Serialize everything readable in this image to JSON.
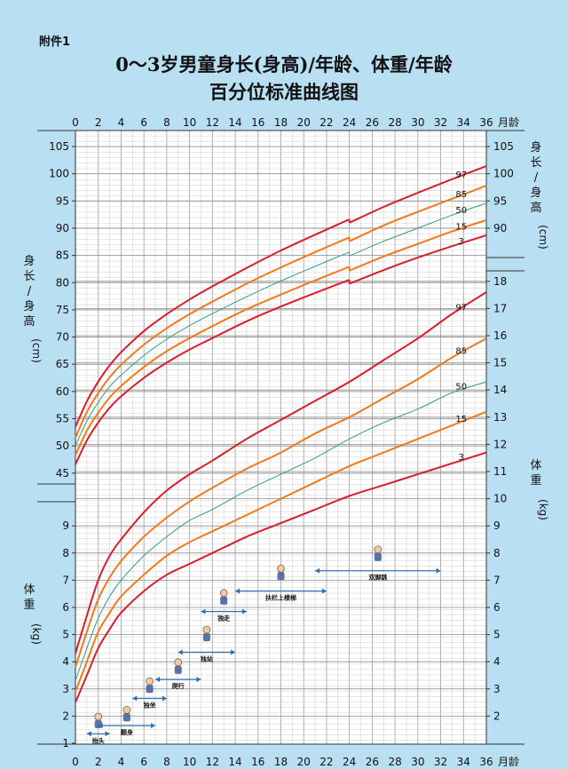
{
  "header": {
    "appendix": "附件1",
    "title_line1": "0～3岁男童身长(身高)/年龄、体重/年龄",
    "title_line2": "百分位标准曲线图"
  },
  "chart_data": {
    "type": "line",
    "xlabel": "月龄",
    "x_ticks": [
      0,
      2,
      4,
      6,
      8,
      10,
      12,
      14,
      16,
      18,
      20,
      22,
      24,
      26,
      28,
      30,
      32,
      34,
      36
    ],
    "xlim": [
      0,
      36
    ],
    "height_axis": {
      "label_chars": [
        "身",
        "长",
        "/",
        "身",
        "高"
      ],
      "unit": "(cm)",
      "left_ticks": [
        45,
        50,
        55,
        60,
        65,
        70,
        75,
        80,
        85,
        90,
        95,
        100,
        105
      ],
      "right_ticks": [
        90,
        95,
        100,
        105
      ],
      "ylim": [
        43,
        107
      ]
    },
    "weight_axis": {
      "label_chars": [
        "体",
        "重"
      ],
      "unit": "(kg)",
      "left_ticks": [
        1,
        2,
        3,
        4,
        5,
        6,
        7,
        8,
        9
      ],
      "right_ticks": [
        2,
        3,
        4,
        5,
        6,
        7,
        8,
        9,
        10,
        11,
        12,
        13,
        14,
        15,
        16,
        17,
        18
      ],
      "ylim": [
        1,
        18.5
      ]
    },
    "height_series": [
      {
        "name": "97",
        "color": "#d81e2a",
        "x": [
          0,
          1,
          2,
          3,
          4,
          6,
          8,
          10,
          12,
          15,
          18,
          21,
          23.99,
          24,
          27,
          30,
          33,
          36
        ],
        "values": [
          53.5,
          58.2,
          61.8,
          64.8,
          67.2,
          71.1,
          74.2,
          76.9,
          79.3,
          82.7,
          85.9,
          88.8,
          91.6,
          91.0,
          93.9,
          96.5,
          99.0,
          101.4
        ]
      },
      {
        "name": "85",
        "color": "#f07a1a",
        "x": [
          0,
          1,
          2,
          3,
          4,
          6,
          8,
          10,
          12,
          15,
          18,
          21,
          23.99,
          24,
          27,
          30,
          33,
          36
        ],
        "values": [
          51.5,
          56.2,
          59.7,
          62.6,
          64.9,
          68.6,
          71.6,
          74.2,
          76.5,
          79.8,
          82.8,
          85.6,
          88.3,
          87.6,
          90.5,
          93.0,
          95.4,
          97.8
        ]
      },
      {
        "name": "50",
        "color": "#2e9c85",
        "x": [
          0,
          1,
          2,
          3,
          4,
          6,
          8,
          10,
          12,
          15,
          18,
          21,
          23.99,
          24,
          27,
          30,
          33,
          36
        ],
        "values": [
          50.0,
          54.6,
          58.0,
          60.9,
          63.0,
          66.6,
          69.6,
          72.1,
          74.3,
          77.4,
          80.3,
          83.0,
          85.6,
          84.9,
          87.6,
          90.0,
          92.4,
          94.6
        ]
      },
      {
        "name": "15",
        "color": "#f07a1a",
        "x": [
          0,
          1,
          2,
          3,
          4,
          6,
          8,
          10,
          12,
          15,
          18,
          21,
          23.99,
          24,
          27,
          30,
          33,
          36
        ],
        "values": [
          48.3,
          52.8,
          56.1,
          58.9,
          61.0,
          64.5,
          67.4,
          69.8,
          72.0,
          75.1,
          77.8,
          80.4,
          82.9,
          82.2,
          84.8,
          87.1,
          89.4,
          91.5
        ]
      },
      {
        "name": "3",
        "color": "#d81e2a",
        "x": [
          0,
          1,
          2,
          3,
          4,
          6,
          8,
          10,
          12,
          15,
          18,
          21,
          23.99,
          24,
          27,
          30,
          33,
          36
        ],
        "values": [
          46.6,
          51.0,
          54.3,
          57.0,
          59.1,
          62.5,
          65.3,
          67.7,
          69.8,
          72.9,
          75.6,
          78.1,
          80.5,
          79.8,
          82.3,
          84.6,
          86.7,
          88.7
        ]
      }
    ],
    "weight_series": [
      {
        "name": "97",
        "color": "#d81e2a",
        "x": [
          0,
          1,
          2,
          3,
          4,
          6,
          8,
          10,
          12,
          15,
          18,
          21,
          24,
          27,
          30,
          33,
          36
        ],
        "values": [
          4.3,
          5.7,
          7.0,
          7.9,
          8.5,
          9.5,
          10.3,
          10.9,
          11.4,
          12.2,
          12.9,
          13.6,
          14.3,
          15.1,
          15.9,
          16.8,
          17.6
        ]
      },
      {
        "name": "85",
        "color": "#f07a1a",
        "x": [
          0,
          1,
          2,
          3,
          4,
          6,
          8,
          10,
          12,
          15,
          18,
          21,
          24,
          27,
          30,
          33,
          36
        ],
        "values": [
          3.8,
          5.1,
          6.3,
          7.1,
          7.7,
          8.6,
          9.3,
          9.9,
          10.4,
          11.1,
          11.7,
          12.4,
          13.0,
          13.7,
          14.4,
          15.2,
          15.9
        ]
      },
      {
        "name": "50",
        "color": "#2e9c85",
        "x": [
          0,
          1,
          2,
          3,
          4,
          6,
          8,
          10,
          12,
          15,
          18,
          21,
          24,
          27,
          30,
          33,
          36
        ],
        "values": [
          3.3,
          4.5,
          5.6,
          6.4,
          7.0,
          7.9,
          8.6,
          9.2,
          9.6,
          10.3,
          10.9,
          11.5,
          12.2,
          12.8,
          13.3,
          13.9,
          14.3
        ]
      },
      {
        "name": "15",
        "color": "#f07a1a",
        "x": [
          0,
          1,
          2,
          3,
          4,
          6,
          8,
          10,
          12,
          15,
          18,
          21,
          24,
          27,
          30,
          33,
          36
        ],
        "values": [
          2.9,
          4.0,
          5.1,
          5.8,
          6.4,
          7.2,
          7.9,
          8.4,
          8.8,
          9.4,
          10.0,
          10.6,
          11.2,
          11.7,
          12.2,
          12.7,
          13.2
        ]
      },
      {
        "name": "3",
        "color": "#d81e2a",
        "x": [
          0,
          1,
          2,
          3,
          4,
          6,
          8,
          10,
          12,
          15,
          18,
          21,
          24,
          27,
          30,
          33,
          36
        ],
        "values": [
          2.5,
          3.5,
          4.5,
          5.2,
          5.8,
          6.6,
          7.2,
          7.6,
          8.0,
          8.6,
          9.1,
          9.6,
          10.1,
          10.5,
          10.9,
          11.3,
          11.7
        ]
      }
    ],
    "milestones": [
      {
        "label": "抬头",
        "from": 1,
        "to": 3,
        "y": 1.35,
        "figure_y": 1.75
      },
      {
        "label": "翻身",
        "from": 2,
        "to": 7,
        "y": 1.65,
        "figure_y": 2.0
      },
      {
        "label": "独坐",
        "from": 5,
        "to": 8,
        "y": 2.65,
        "figure_y": 3.05
      },
      {
        "label": "爬行",
        "from": 7,
        "to": 11,
        "y": 3.35,
        "figure_y": 3.75
      },
      {
        "label": "独站",
        "from": 9,
        "to": 14,
        "y": 4.35,
        "figure_y": 4.95
      },
      {
        "label": "独走",
        "from": 11,
        "to": 15,
        "y": 5.85,
        "figure_y": 6.3
      },
      {
        "label": "扶栏上楼梯",
        "from": 14,
        "to": 22,
        "y": 6.6,
        "figure_y": 7.2
      },
      {
        "label": "双脚跳",
        "from": 21,
        "to": 32,
        "y": 7.35,
        "figure_y": 7.9
      }
    ]
  }
}
